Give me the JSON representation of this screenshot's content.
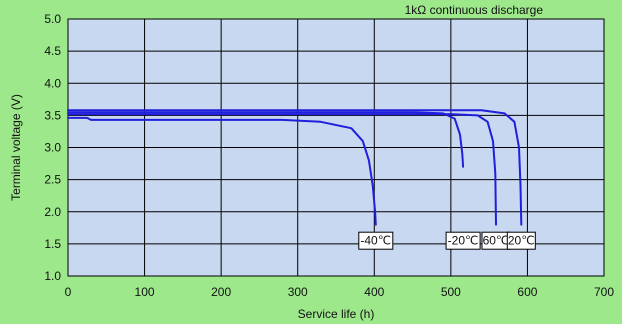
{
  "chart_data": {
    "type": "line",
    "title": "",
    "annotation": "1kΩ continuous discharge",
    "xlabel": "Service life (h)",
    "ylabel": "Terminal voltage (V)",
    "xlim": [
      0,
      700
    ],
    "ylim": [
      1.0,
      5.0
    ],
    "x_ticks": [
      "0",
      "100",
      "200",
      "300",
      "400",
      "500",
      "600",
      "700"
    ],
    "y_ticks": [
      "1.0",
      "1.5",
      "2.0",
      "2.5",
      "3.0",
      "3.5",
      "4.0",
      "4.5",
      "5.0"
    ],
    "grid": true,
    "colors": {
      "background": "#9ee88c",
      "plot_area": "#c8d8f0",
      "grid": "#000000",
      "series": "#1f1fdc"
    },
    "series": [
      {
        "name": "-40℃",
        "x": [
          0,
          25,
          30,
          280,
          330,
          370,
          385,
          393,
          398,
          401,
          402
        ],
        "y": [
          3.46,
          3.46,
          3.43,
          3.43,
          3.4,
          3.3,
          3.1,
          2.8,
          2.4,
          2.0,
          1.8
        ]
      },
      {
        "name": "-20℃",
        "x": [
          0,
          450,
          490,
          505,
          512,
          515,
          516
        ],
        "y": [
          3.55,
          3.55,
          3.53,
          3.45,
          3.2,
          2.9,
          2.7
        ]
      },
      {
        "name": "60℃",
        "x": [
          0,
          500,
          535,
          548,
          555,
          558,
          559
        ],
        "y": [
          3.52,
          3.52,
          3.5,
          3.4,
          3.1,
          2.6,
          1.8
        ]
      },
      {
        "name": "20℃",
        "x": [
          0,
          540,
          570,
          583,
          589,
          591,
          592
        ],
        "y": [
          3.58,
          3.58,
          3.53,
          3.4,
          3.0,
          2.4,
          1.8
        ]
      }
    ]
  }
}
